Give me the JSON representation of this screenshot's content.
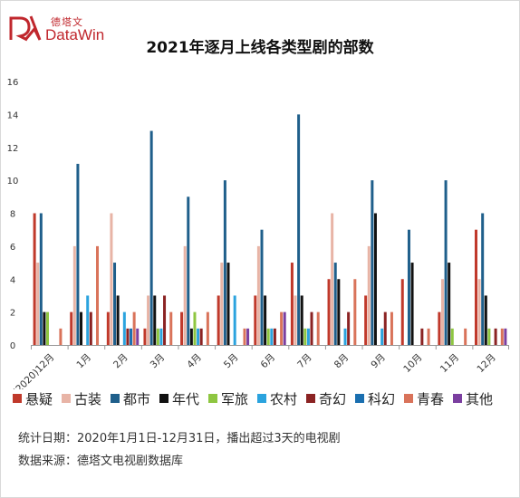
{
  "logo": {
    "cn": "德塔文",
    "en": "DataWin"
  },
  "chart_data": {
    "type": "bar",
    "title": "2021年逐月上线各类型剧的部数",
    "categories": [
      "(2020)12月",
      "1月",
      "2月",
      "3月",
      "4月",
      "5月",
      "6月",
      "7月",
      "8月",
      "9月",
      "10月",
      "11月",
      "12月"
    ],
    "ylim": [
      0,
      16
    ],
    "yticks": [
      0,
      2,
      4,
      6,
      8,
      10,
      12,
      14,
      16
    ],
    "grid": false,
    "legend_position": "bottom",
    "series": [
      {
        "name": "悬疑",
        "color": "#c0392b",
        "values": [
          8,
          2,
          2,
          1,
          2,
          3,
          3,
          5,
          4,
          3,
          4,
          2,
          7
        ]
      },
      {
        "name": "古装",
        "color": "#e8b4a6",
        "values": [
          5,
          6,
          8,
          3,
          6,
          5,
          6,
          3,
          8,
          6,
          0,
          4,
          4
        ]
      },
      {
        "name": "都市",
        "color": "#1f5f8b",
        "values": [
          8,
          11,
          5,
          13,
          9,
          10,
          7,
          14,
          5,
          10,
          7,
          10,
          8
        ]
      },
      {
        "name": "年代",
        "color": "#111111",
        "values": [
          2,
          2,
          3,
          3,
          1,
          5,
          3,
          3,
          4,
          8,
          5,
          5,
          3
        ]
      },
      {
        "name": "军旅",
        "color": "#8ec641",
        "values": [
          2,
          0,
          0,
          1,
          2,
          0,
          1,
          1,
          0,
          0,
          0,
          1,
          1
        ]
      },
      {
        "name": "农村",
        "color": "#2ba3de",
        "values": [
          0,
          3,
          2,
          1,
          1,
          3,
          1,
          1,
          1,
          1,
          0,
          0,
          0
        ]
      },
      {
        "name": "奇幻",
        "color": "#8b2323",
        "values": [
          0,
          2,
          1,
          3,
          1,
          0,
          1,
          2,
          2,
          2,
          1,
          0,
          1
        ]
      },
      {
        "name": "科幻",
        "color": "#1a6fb0",
        "values": [
          0,
          0,
          1,
          0,
          0,
          0,
          0,
          0,
          0,
          0,
          0,
          0,
          0
        ]
      },
      {
        "name": "青春",
        "color": "#d9735a",
        "values": [
          1,
          6,
          2,
          2,
          2,
          1,
          2,
          2,
          4,
          2,
          1,
          1,
          1
        ]
      },
      {
        "name": "其他",
        "color": "#7b3fa0",
        "values": [
          0,
          0,
          1,
          0,
          0,
          1,
          2,
          0,
          0,
          0,
          0,
          0,
          1
        ]
      }
    ]
  },
  "footer": {
    "date_line": "统计日期：2020年1月1日-12月31日，播出超过3天的电视剧",
    "source_line": "数据来源：德塔文电视剧数据库"
  }
}
